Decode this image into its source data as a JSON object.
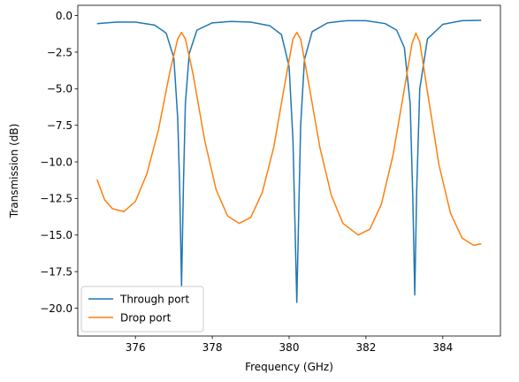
{
  "chart_data": {
    "type": "line",
    "xlabel": "Frequency (GHz)",
    "ylabel": "Transmission (dB)",
    "xlim": [
      374.5,
      385.5
    ],
    "ylim": [
      -21.9,
      0.7
    ],
    "xticks": [
      376,
      378,
      380,
      382,
      384
    ],
    "yticks": [
      0.0,
      -2.5,
      -5.0,
      -7.5,
      -10.0,
      -12.5,
      -15.0,
      -17.5,
      -20.0
    ],
    "xtick_labels": [
      "376",
      "378",
      "380",
      "382",
      "384"
    ],
    "ytick_labels": [
      "0.0",
      "−2.5",
      "−5.0",
      "−7.5",
      "−10.0",
      "−12.5",
      "−15.0",
      "−17.5",
      "−20.0"
    ],
    "grid": false,
    "legend_position": "lower-left",
    "series": [
      {
        "name": "Through port",
        "color": "#1f77b4",
        "x": [
          375.0,
          375.5,
          376.0,
          376.5,
          376.8,
          377.0,
          377.1,
          377.15,
          377.2,
          377.25,
          377.3,
          377.4,
          377.6,
          378.0,
          378.5,
          379.0,
          379.5,
          379.8,
          380.0,
          380.1,
          380.15,
          380.2,
          380.25,
          380.3,
          380.4,
          380.6,
          381.0,
          381.5,
          382.0,
          382.5,
          382.8,
          383.0,
          383.15,
          383.22,
          383.27,
          383.32,
          383.4,
          383.6,
          384.0,
          384.5,
          385.0
        ],
        "y": [
          -0.55,
          -0.45,
          -0.45,
          -0.65,
          -1.2,
          -2.9,
          -7.0,
          -11.5,
          -18.5,
          -11.5,
          -6.0,
          -2.6,
          -1.0,
          -0.5,
          -0.4,
          -0.45,
          -0.7,
          -1.3,
          -3.5,
          -8.5,
          -14.0,
          -19.6,
          -13.5,
          -7.5,
          -3.0,
          -1.1,
          -0.5,
          -0.35,
          -0.35,
          -0.55,
          -1.0,
          -2.2,
          -6.0,
          -12.5,
          -19.1,
          -12.0,
          -5.0,
          -1.6,
          -0.6,
          -0.35,
          -0.33
        ]
      },
      {
        "name": "Drop port",
        "color": "#ff7f0e",
        "x": [
          375.0,
          375.2,
          375.4,
          375.7,
          376.0,
          376.3,
          376.6,
          376.9,
          377.1,
          377.2,
          377.3,
          377.5,
          377.8,
          378.1,
          378.4,
          378.7,
          379.0,
          379.3,
          379.6,
          379.9,
          380.1,
          380.2,
          380.3,
          380.5,
          380.8,
          381.1,
          381.4,
          381.8,
          382.1,
          382.4,
          382.7,
          383.0,
          383.2,
          383.3,
          383.4,
          383.6,
          383.9,
          384.2,
          384.5,
          384.8,
          385.0
        ],
        "y": [
          -11.2,
          -12.6,
          -13.2,
          -13.4,
          -12.7,
          -10.8,
          -7.8,
          -3.8,
          -1.6,
          -1.15,
          -1.6,
          -4.0,
          -8.5,
          -11.9,
          -13.7,
          -14.2,
          -13.8,
          -12.1,
          -9.0,
          -4.5,
          -1.6,
          -1.15,
          -1.6,
          -4.5,
          -9.0,
          -12.3,
          -14.2,
          -15.0,
          -14.6,
          -12.9,
          -9.6,
          -5.0,
          -1.9,
          -1.2,
          -1.8,
          -5.2,
          -10.2,
          -13.5,
          -15.2,
          -15.7,
          -15.6
        ]
      }
    ]
  }
}
